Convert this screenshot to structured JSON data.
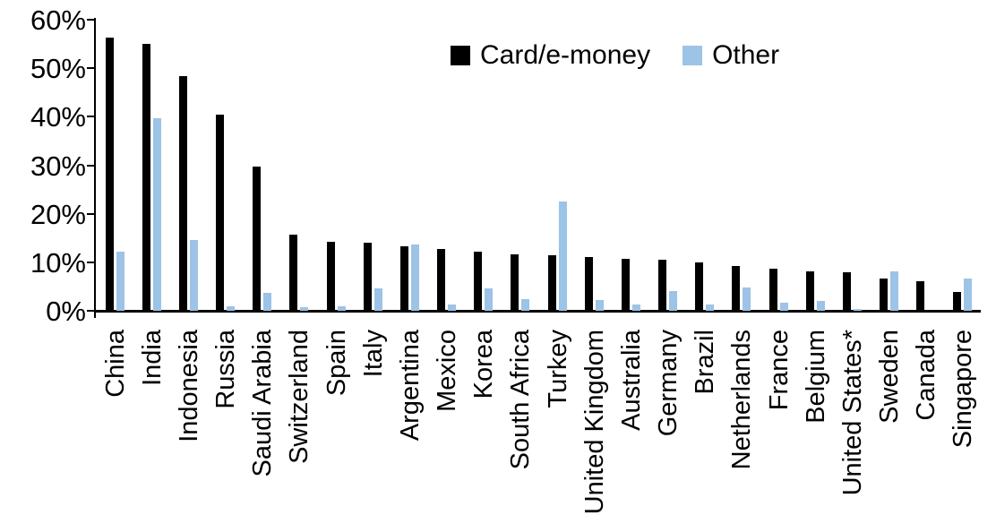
{
  "chart_data": {
    "type": "bar",
    "title": "",
    "xlabel": "",
    "ylabel": "",
    "categories": [
      "China",
      "India",
      "Indonesia",
      "Russia",
      "Saudi Arabia",
      "Switzerland",
      "Spain",
      "Italy",
      "Argentina",
      "Mexico",
      "Korea",
      "South Africa",
      "Turkey",
      "United Kingdom",
      "Australia",
      "Germany",
      "Brazil",
      "Netherlands",
      "France",
      "Belgium",
      "United States*",
      "Sweden",
      "Canada",
      "Singapore"
    ],
    "series": [
      {
        "name": "Card/e-money",
        "color": "#000000",
        "values": [
          56.3,
          55.0,
          48.3,
          40.5,
          29.8,
          15.6,
          14.2,
          14.1,
          13.2,
          12.8,
          12.2,
          11.7,
          11.5,
          11.0,
          10.7,
          10.5,
          10.0,
          9.3,
          8.7,
          8.2,
          7.9,
          6.6,
          6.0,
          3.9
        ]
      },
      {
        "name": "Other",
        "color": "#9DC3E6",
        "values": [
          12.2,
          39.7,
          14.5,
          1.0,
          3.7,
          0.7,
          1.0,
          4.6,
          13.7,
          1.2,
          4.6,
          2.4,
          22.5,
          2.3,
          1.2,
          4.0,
          1.2,
          4.8,
          1.6,
          2.1,
          0.3,
          8.1,
          0.0,
          6.6
        ]
      }
    ],
    "ylim": [
      0,
      60
    ],
    "y_ticks": [
      0,
      10,
      20,
      30,
      40,
      50,
      60
    ],
    "y_tick_labels": [
      "0%",
      "10%",
      "20%",
      "30%",
      "40%",
      "50%",
      "60%"
    ],
    "grid": false,
    "legend_position": "top-center"
  },
  "colors": {
    "axis": "#000000",
    "background": "#ffffff"
  }
}
